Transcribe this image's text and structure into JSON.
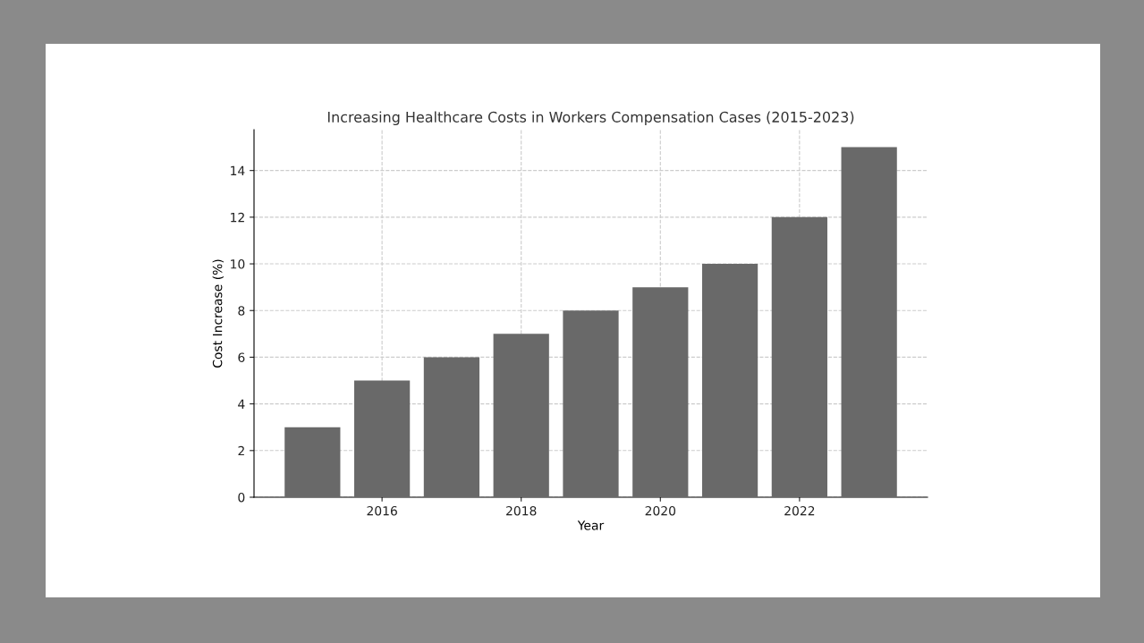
{
  "chart_data": {
    "type": "bar",
    "title": "Increasing Healthcare Costs in Workers Compensation Cases (2015-2023)",
    "xlabel": "Year",
    "ylabel": "Cost Increase (%)",
    "x": [
      2015,
      2016,
      2017,
      2018,
      2019,
      2020,
      2021,
      2022,
      2023
    ],
    "values": [
      3,
      5,
      6,
      7,
      8,
      9,
      10,
      12,
      15
    ],
    "color": "#696969",
    "xlim": [
      2014.16,
      2023.84
    ],
    "xticks": [
      2016,
      2018,
      2020,
      2022
    ],
    "ylim": [
      0,
      15.75
    ],
    "yticks": [
      0,
      2,
      4,
      6,
      8,
      10,
      12,
      14
    ],
    "grid": true,
    "legend": false
  }
}
